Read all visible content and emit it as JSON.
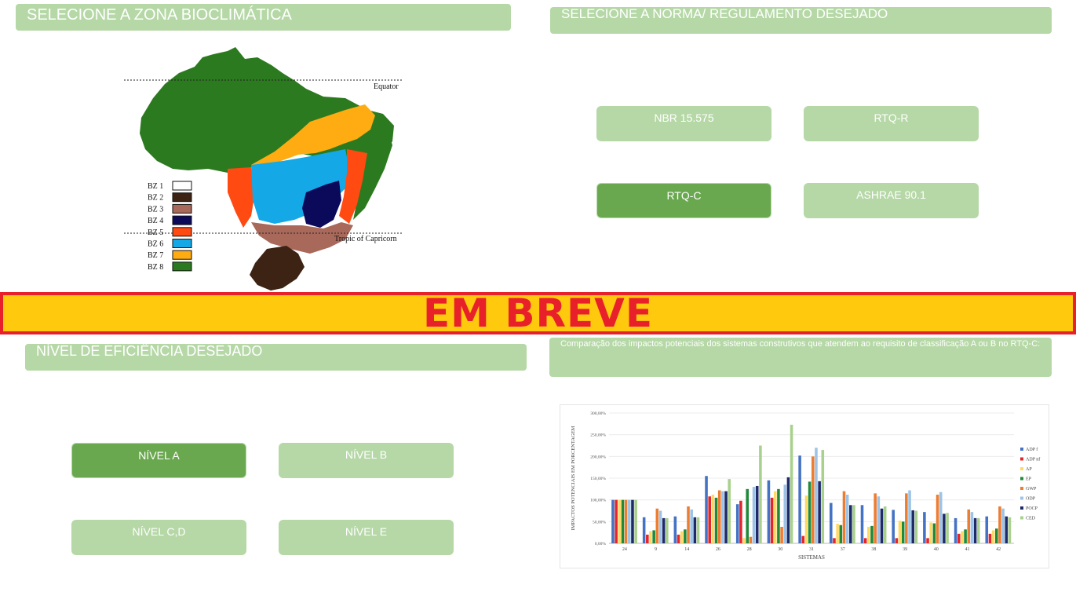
{
  "headers": {
    "zone": "SELECIONE A ZONA BIOCLIMÁTICA",
    "norm": "SELECIONE A NORMA/ REGULAMENTO DESEJADO",
    "level": "NÍVEL DE EFICIÊNCIA  DESEJADO",
    "comparison": "Comparação dos impactos potenciais dos sistemas construtivos que atendem ao requisito de classificação A ou B no RTQ-C:"
  },
  "norm_buttons": [
    {
      "label": "NBR 15.575",
      "active": false
    },
    {
      "label": "RTQ-R",
      "active": false
    },
    {
      "label": "RTQ-C",
      "active": true
    },
    {
      "label": "ASHRAE 90.1",
      "active": false
    }
  ],
  "level_buttons": [
    {
      "label": "NÍVEL A",
      "active": true
    },
    {
      "label": "NÍVEL B",
      "active": false
    },
    {
      "label": "NÍVEL C,D",
      "active": false
    },
    {
      "label": "NÍVEL E",
      "active": false
    }
  ],
  "banner": "EM BREVE",
  "map": {
    "equator": "Equator",
    "tropic": "Tropic of Capricorn",
    "legend": [
      {
        "label": "BZ 1",
        "color": "#ffffff"
      },
      {
        "label": "BZ 2",
        "color": "#3d2314"
      },
      {
        "label": "BZ 3",
        "color": "#a8685a"
      },
      {
        "label": "BZ 4",
        "color": "#0b0a5a"
      },
      {
        "label": "BZ 5",
        "color": "#ff4a12"
      },
      {
        "label": "BZ 6",
        "color": "#14a9e6"
      },
      {
        "label": "BZ 7",
        "color": "#ffac12"
      },
      {
        "label": "BZ 8",
        "color": "#2c7a1f"
      }
    ]
  },
  "chart_data": {
    "type": "bar",
    "title": "",
    "xlabel": "SISTEMAS",
    "ylabel": "IMPACTOS POTENCIAIS EM PORCENTAGEM",
    "ylim": [
      0,
      300
    ],
    "yticks": [
      "0,00%",
      "50,00%",
      "100,00%",
      "150,00%",
      "200,00%",
      "250,00%",
      "300,00%"
    ],
    "categories": [
      "24",
      "9",
      "14",
      "26",
      "28",
      "30",
      "31",
      "37",
      "38",
      "39",
      "40",
      "41",
      "42"
    ],
    "legend_position": "right",
    "series": [
      {
        "name": "ADP f",
        "color": "#4472c4",
        "values": [
          100,
          60,
          62,
          155,
          90,
          145,
          202,
          93,
          88,
          77,
          72,
          58,
          62
        ]
      },
      {
        "name": "ADP nf",
        "color": "#e3262b",
        "values": [
          100,
          20,
          20,
          108,
          98,
          105,
          17,
          12,
          12,
          12,
          12,
          22,
          22
        ]
      },
      {
        "name": "AP",
        "color": "#ffd966",
        "values": [
          100,
          28,
          28,
          112,
          12,
          120,
          110,
          45,
          38,
          52,
          48,
          28,
          30
        ]
      },
      {
        "name": "EP",
        "color": "#1f8a3a",
        "values": [
          100,
          30,
          32,
          105,
          125,
          125,
          142,
          42,
          40,
          50,
          46,
          32,
          34
        ]
      },
      {
        "name": "GWP",
        "color": "#ed7d31",
        "values": [
          100,
          80,
          85,
          122,
          15,
          38,
          200,
          120,
          115,
          115,
          112,
          78,
          85
        ]
      },
      {
        "name": "ODP",
        "color": "#9dc3e6",
        "values": [
          100,
          75,
          78,
          120,
          130,
          135,
          220,
          112,
          108,
          122,
          118,
          72,
          80
        ]
      },
      {
        "name": "POCP",
        "color": "#1f2a6b",
        "values": [
          100,
          58,
          60,
          120,
          132,
          152,
          143,
          88,
          80,
          76,
          68,
          58,
          62
        ]
      },
      {
        "name": "CED",
        "color": "#a9d18e",
        "values": [
          100,
          58,
          60,
          148,
          225,
          273,
          215,
          88,
          85,
          75,
          70,
          58,
          60
        ]
      }
    ]
  }
}
